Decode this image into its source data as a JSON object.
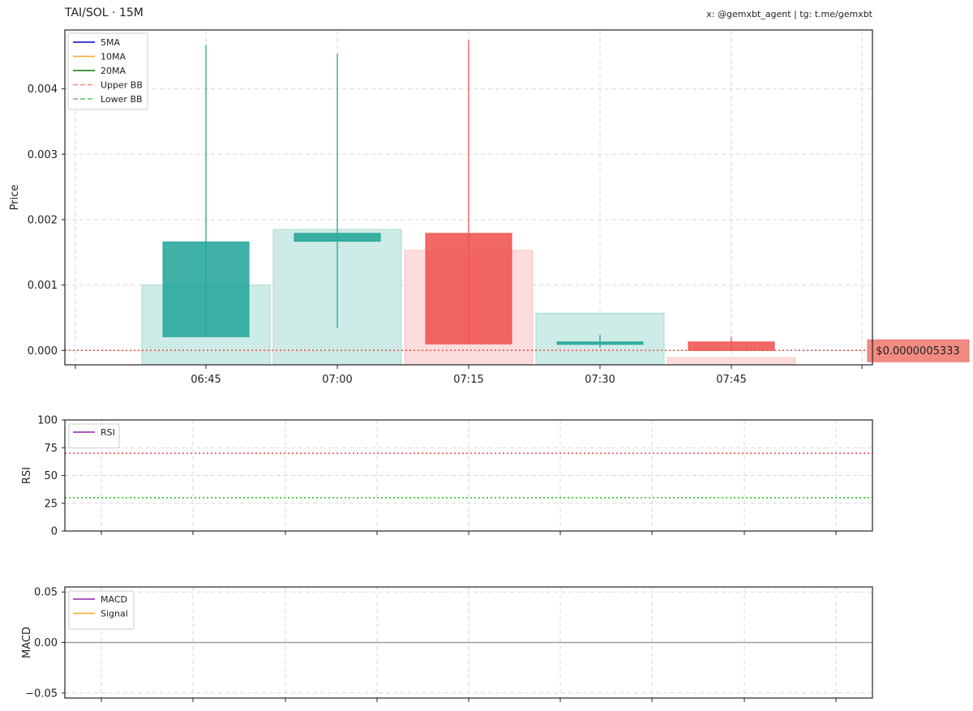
{
  "header": {
    "title": "TAI/SOL · 15M",
    "credit": "x: @gemxbt_agent | tg: t.me/gemxbt"
  },
  "chart_data": [
    {
      "panel": "price",
      "type": "candlestick",
      "ylabel": "Price",
      "ylim": [
        -0.00022,
        0.0049
      ],
      "yticks": [
        0,
        0.001,
        0.002,
        0.003,
        0.004
      ],
      "ytick_labels": [
        "0.000",
        "0.001",
        "0.002",
        "0.003",
        "0.004"
      ],
      "xticks": [
        "06:45",
        "07:00",
        "07:15",
        "07:30",
        "07:45"
      ],
      "candles": [
        {
          "time": "06:45",
          "open": 0.00021,
          "high": 0.00467,
          "low": 0.00021,
          "close": 0.00166,
          "direction": "up"
        },
        {
          "time": "07:00",
          "open": 0.00167,
          "high": 0.00454,
          "low": 0.00034,
          "close": 0.00179,
          "direction": "up"
        },
        {
          "time": "07:15",
          "open": 0.00179,
          "high": 0.00474,
          "low": 0.0001,
          "close": 0.0001,
          "direction": "down"
        },
        {
          "time": "07:30",
          "open": 0.0001,
          "high": 0.00024,
          "low": 4e-05,
          "close": 0.00013,
          "direction": "up"
        },
        {
          "time": "07:45",
          "open": 0.00013,
          "high": 0.00021,
          "low": 5.333e-07,
          "close": 5.333e-07,
          "direction": "down"
        }
      ],
      "volume_bars": [
        {
          "time": "06:45",
          "value": 0.001,
          "direction": "up"
        },
        {
          "time": "07:00",
          "value": 0.00185,
          "direction": "up"
        },
        {
          "time": "07:15",
          "value": 0.00153,
          "direction": "down"
        },
        {
          "time": "07:30",
          "value": 0.00057,
          "direction": "up"
        },
        {
          "time": "07:45",
          "value": -0.00011,
          "direction": "down"
        }
      ],
      "current_price": 5.333e-07,
      "current_price_label": "$0.0000005333",
      "legend": {
        "placement": "top-left",
        "items": [
          {
            "label": "5MA",
            "color": "#0000cc",
            "style": "solid"
          },
          {
            "label": "10MA",
            "color": "#f5a623",
            "style": "solid"
          },
          {
            "label": "20MA",
            "color": "#007a00",
            "style": "solid"
          },
          {
            "label": "Upper BB",
            "color": "#f28b82",
            "style": "dashed"
          },
          {
            "label": "Lower BB",
            "color": "#66bb6a",
            "style": "dashed"
          }
        ]
      },
      "grid": true
    },
    {
      "panel": "rsi",
      "type": "line",
      "ylabel": "RSI",
      "ylim": [
        0,
        100
      ],
      "yticks": [
        0,
        25,
        50,
        75,
        100
      ],
      "ytick_labels": [
        "0",
        "25",
        "50",
        "75",
        "100"
      ],
      "overbought": 70,
      "oversold": 30,
      "series": [
        {
          "name": "RSI",
          "color": "#8e24aa",
          "values": []
        }
      ],
      "legend": {
        "placement": "top-left"
      },
      "grid": true
    },
    {
      "panel": "macd",
      "type": "line",
      "ylabel": "MACD",
      "ylim": [
        -0.055,
        0.055
      ],
      "yticks": [
        -0.05,
        0,
        0.05
      ],
      "ytick_labels": [
        "−0.05",
        "0.00",
        "0.05"
      ],
      "zero_line": 0,
      "series": [
        {
          "name": "MACD",
          "color": "#8e24aa",
          "values": []
        },
        {
          "name": "Signal",
          "color": "#f5a623",
          "values": []
        }
      ],
      "legend": {
        "placement": "top-left"
      },
      "grid": true
    }
  ],
  "colors": {
    "up": "#26a69a",
    "down": "#ef5350",
    "up_volume": "#cdebe7",
    "down_volume": "#fcdcdc",
    "price_line": "#ef5350",
    "price_label_bg": "#f28b82",
    "overbought_line": "#ef5350",
    "oversold_line": "#3cc63c",
    "zero_line": "#9e9e9e"
  }
}
